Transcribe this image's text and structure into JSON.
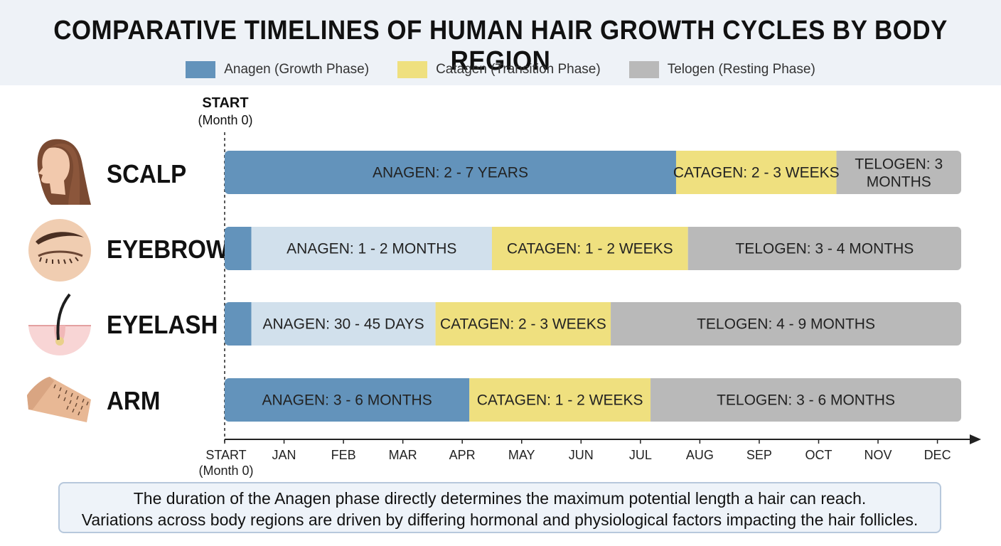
{
  "title": "COMPARATIVE TIMELINES OF HUMAN HAIR GROWTH CYCLES BY BODY REGION",
  "legend": [
    {
      "label": "Anagen (Growth Phase)",
      "color": "#6393bb"
    },
    {
      "label": "Catagen (Transition Phase)",
      "color": "#efe07f"
    },
    {
      "label": "Telogen (Resting Phase)",
      "color": "#b9b9b9"
    }
  ],
  "start_marker": {
    "line1": "START",
    "line2": "(Month 0)"
  },
  "rows": [
    {
      "name": "SCALP",
      "icon": "woman-profile-icon"
    },
    {
      "name": "EYEBROW",
      "icon": "closed-eye-icon"
    },
    {
      "name": "EYELASH",
      "icon": "hair-follicle-icon"
    },
    {
      "name": "ARM",
      "icon": "forearm-icon"
    }
  ],
  "chart_data": {
    "type": "bar",
    "orientation": "horizontal-stacked-timeline",
    "x_ticks": [
      "START\n(Month 0)",
      "JAN",
      "FEB",
      "MAR",
      "APR",
      "MAY",
      "JUN",
      "JUL",
      "AUG",
      "SEP",
      "OCT",
      "NOV",
      "DEC"
    ],
    "xlim": [
      0,
      12.4
    ],
    "categories": [
      "SCALP",
      "EYEBROW",
      "EYELASH",
      "ARM"
    ],
    "segments": [
      [
        {
          "phase": "anagen",
          "start": 0,
          "end": 7.6,
          "label": "ANAGEN: 2 - 7 YEARS",
          "color": "#6393bb"
        },
        {
          "phase": "catagen",
          "start": 7.6,
          "end": 10.3,
          "label": "CATAGEN: 2 - 3 WEEKS",
          "color": "#efe07f"
        },
        {
          "phase": "telogen",
          "start": 10.3,
          "end": 12.4,
          "label": "TELOGEN: 3\nMONTHS",
          "color": "#b9b9b9"
        }
      ],
      [
        {
          "phase": "anagen",
          "start": 0,
          "end": 0.45,
          "label": "",
          "color": "#6393bb"
        },
        {
          "phase": "anagen-light",
          "start": 0.45,
          "end": 4.5,
          "label": "ANAGEN: 1 - 2 MONTHS",
          "color": "#d1e0ec"
        },
        {
          "phase": "catagen",
          "start": 4.5,
          "end": 7.8,
          "label": "CATAGEN: 1 - 2 WEEKS",
          "color": "#efe07f"
        },
        {
          "phase": "telogen",
          "start": 7.8,
          "end": 12.4,
          "label": "TELOGEN: 3 - 4 MONTHS",
          "color": "#b9b9b9"
        }
      ],
      [
        {
          "phase": "anagen",
          "start": 0,
          "end": 0.45,
          "label": "",
          "color": "#6393bb"
        },
        {
          "phase": "anagen-light",
          "start": 0.45,
          "end": 3.55,
          "label": "ANAGEN: 30 - 45 DAYS",
          "color": "#d1e0ec"
        },
        {
          "phase": "catagen",
          "start": 3.55,
          "end": 6.5,
          "label": "CATAGEN: 2 - 3 WEEKS",
          "color": "#efe07f"
        },
        {
          "phase": "telogen",
          "start": 6.5,
          "end": 12.4,
          "label": "TELOGEN: 4 - 9 MONTHS",
          "color": "#b9b9b9"
        }
      ],
      [
        {
          "phase": "anagen",
          "start": 0,
          "end": 4.12,
          "label": "ANAGEN: 3 - 6 MONTHS",
          "color": "#6393bb"
        },
        {
          "phase": "catagen",
          "start": 4.12,
          "end": 7.17,
          "label": "CATAGEN: 1 - 2 WEEKS",
          "color": "#efe07f"
        },
        {
          "phase": "telogen",
          "start": 7.17,
          "end": 12.4,
          "label": "TELOGEN: 3 - 6 MONTHS",
          "color": "#b9b9b9"
        }
      ]
    ]
  },
  "note": {
    "line1": "The duration of the Anagen phase directly determines the maximum potential length a hair can reach.",
    "line2": "Variations across body regions are driven by differing hormonal and physiological factors impacting the hair follicles."
  }
}
